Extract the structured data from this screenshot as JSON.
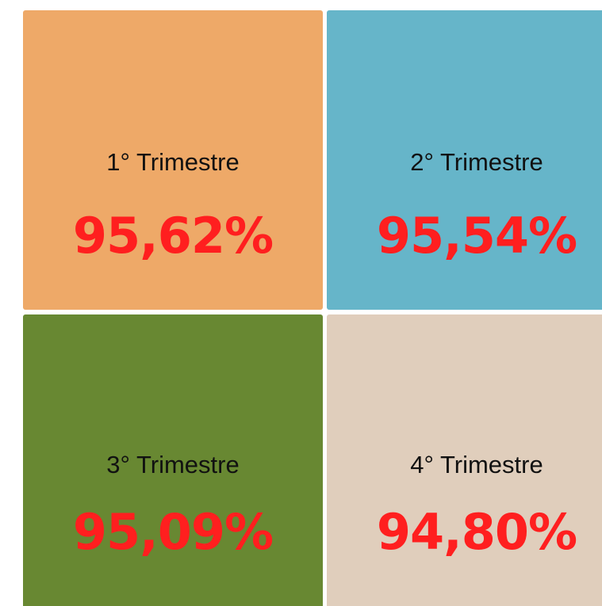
{
  "tiles": [
    {
      "label": "1° Trimestre",
      "value": "95,62%"
    },
    {
      "label": "2° Trimestre",
      "value": "95,54%"
    },
    {
      "label": "3° Trimestre",
      "value": "95,09%"
    },
    {
      "label": "4° Trimestre",
      "value": "94,80%"
    }
  ]
}
